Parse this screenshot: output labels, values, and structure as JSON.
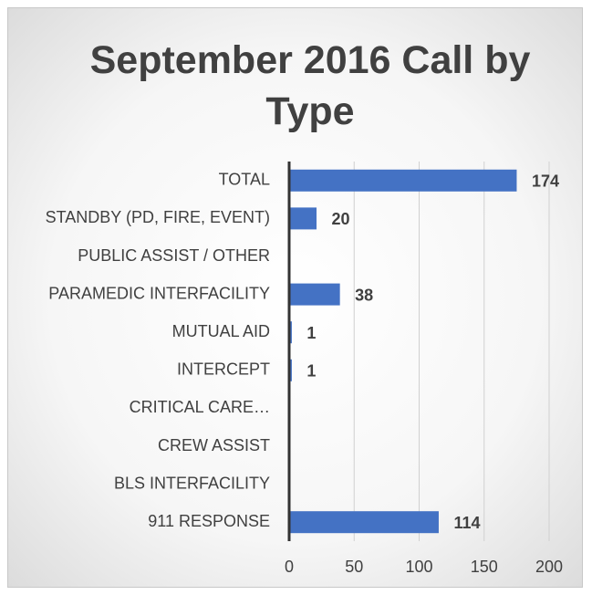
{
  "chart_data": {
    "type": "bar",
    "orientation": "horizontal",
    "title": "September 2016 Call by Type",
    "categories": [
      "TOTAL",
      "STANDBY (PD, FIRE, EVENT)",
      "PUBLIC ASSIST / OTHER",
      "PARAMEDIC INTERFACILITY",
      "MUTUAL AID",
      "INTERCEPT",
      "CRITICAL CARE…",
      "CREW ASSIST",
      "BLS INTERFACILITY",
      "911 RESPONSE"
    ],
    "values": [
      174,
      20,
      null,
      38,
      1,
      1,
      null,
      null,
      null,
      114
    ],
    "color": "#4472c4",
    "xlim": [
      0,
      200
    ],
    "xticks": [
      0,
      50,
      100,
      150,
      200
    ],
    "grid": true
  }
}
